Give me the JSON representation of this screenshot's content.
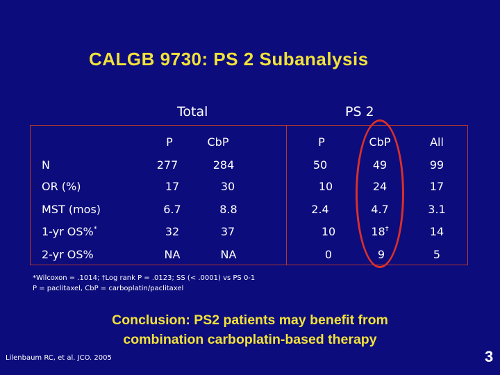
{
  "slide": {
    "title": "CALGB 9730:  PS 2 Subanalysis",
    "page_number": "3"
  },
  "table": {
    "groups": {
      "total": "Total",
      "ps2": "PS 2"
    },
    "columns": [
      "P",
      "CbP",
      "P",
      "CbP",
      "All"
    ],
    "rows": [
      {
        "label": "N",
        "values": [
          "277",
          "284",
          "50",
          "49",
          "99"
        ]
      },
      {
        "label": "OR (%)",
        "values": [
          "17",
          "30",
          "10",
          "24",
          "17"
        ]
      },
      {
        "label": "MST (mos)",
        "values": [
          "6.7",
          "8.8",
          "2.4",
          "4.7",
          "3.1"
        ]
      },
      {
        "label": "1-yr OS%",
        "label_sup": "*",
        "values": [
          "32",
          "37",
          "10",
          "18",
          "14"
        ],
        "sup_col4": "†"
      },
      {
        "label": "2-yr OS%",
        "values": [
          "NA",
          "NA",
          "0",
          "9",
          "5"
        ]
      }
    ]
  },
  "footnotes": {
    "line1": "*Wilcoxon = .1014; †Log rank P = .0123; SS (< .0001) vs PS 0-1",
    "line2": "P = paclitaxel, CbP = carboplatin/paclitaxel"
  },
  "conclusion": {
    "line1": "Conclusion: PS2 patients may benefit from",
    "line2": "combination carboplatin-based therapy"
  },
  "citation": "Lilenbaum RC, et al. JCO. 2005",
  "colors": {
    "background": "#0c0c7c",
    "title": "#f2e23a",
    "border": "#b7372d",
    "highlight": "#d9302a"
  }
}
